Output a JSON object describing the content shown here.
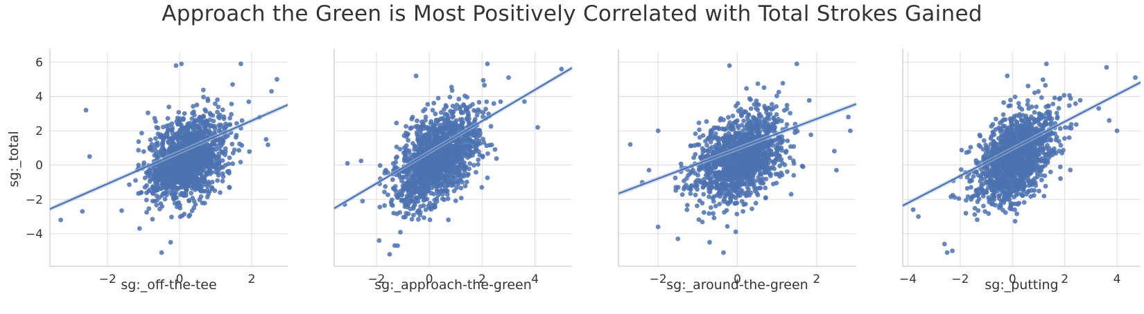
{
  "chart_data": {
    "type": "scatter",
    "title": "Approach the Green is Most Positively Correlated with Total Strokes Gained",
    "ylabel": "sg:_total",
    "ylim": [
      -5.9,
      6.6
    ],
    "yticks": [
      -4,
      -2,
      0,
      2,
      4,
      6
    ],
    "grid": true,
    "colors": {
      "points": "#4c72b0",
      "line": "#4c72b0",
      "ci_band": "#a9bfe0",
      "grid": "#dddddd",
      "axis": "#cccccc"
    },
    "panels": [
      {
        "xlabel": "sg:_off-the-tee",
        "xlim": [
          -3.6,
          3.0
        ],
        "xticks": [
          -2,
          0,
          2
        ],
        "x_mean": 0.2,
        "x_sd": 0.55,
        "regression": {
          "slope": 0.92,
          "intercept": 0.75
        },
        "outliers": [
          [
            -3.3,
            -3.2
          ],
          [
            -2.6,
            3.2
          ],
          [
            -2.5,
            0.5
          ],
          [
            -2.7,
            -2.7
          ],
          [
            2.7,
            5.0
          ],
          [
            2.55,
            4.3
          ],
          [
            2.4,
            1.5
          ],
          [
            0.05,
            5.9
          ],
          [
            1.7,
            5.9
          ],
          [
            -0.25,
            -4.5
          ],
          [
            -0.5,
            -5.1
          ],
          [
            -0.1,
            5.8
          ]
        ]
      },
      {
        "xlabel": "sg:_approach-the-green",
        "xlim": [
          -3.6,
          5.4
        ],
        "xticks": [
          -2,
          0,
          2,
          4
        ],
        "x_mean": 0.3,
        "x_sd": 0.8,
        "regression": {
          "slope": 0.91,
          "intercept": 0.75
        },
        "outliers": [
          [
            -3.1,
            0.1
          ],
          [
            5.0,
            5.6
          ],
          [
            4.1,
            2.2
          ],
          [
            3.6,
            3.7
          ],
          [
            2.2,
            5.9
          ],
          [
            -0.5,
            5.2
          ],
          [
            -1.5,
            -5.2
          ],
          [
            -1.2,
            -4.7
          ],
          [
            -1.9,
            -4.4
          ],
          [
            -3.2,
            -2.3
          ],
          [
            3.0,
            5.1
          ]
        ]
      },
      {
        "xlabel": "sg:_around-the-green",
        "xlim": [
          -3.0,
          3.0
        ],
        "xticks": [
          -2,
          0,
          2
        ],
        "x_mean": 0.05,
        "x_sd": 0.55,
        "regression": {
          "slope": 0.87,
          "intercept": 0.95
        },
        "outliers": [
          [
            -2.7,
            1.2
          ],
          [
            -2.4,
            -1.0
          ],
          [
            -2.0,
            2.0
          ],
          [
            -2.0,
            -3.6
          ],
          [
            2.8,
            2.8
          ],
          [
            2.85,
            2.0
          ],
          [
            2.5,
            -0.3
          ],
          [
            1.5,
            5.9
          ],
          [
            -0.35,
            -5.1
          ],
          [
            -0.7,
            -4.5
          ],
          [
            -0.2,
            5.8
          ],
          [
            -1.5,
            -4.3
          ]
        ]
      },
      {
        "xlabel": "sg:_putting",
        "xlim": [
          -4.2,
          4.9
        ],
        "xticks": [
          -4,
          0,
          2,
          4
        ],
        "xticks_all": [
          -4,
          -2,
          0,
          2,
          4
        ],
        "x_mean": 0.1,
        "x_sd": 0.75,
        "regression": {
          "slope": 0.79,
          "intercept": 0.95
        },
        "outliers": [
          [
            -3.8,
            -2.6
          ],
          [
            -3.6,
            -3.0
          ],
          [
            4.7,
            5.1
          ],
          [
            3.6,
            5.7
          ],
          [
            4.0,
            2.0
          ],
          [
            3.7,
            2.6
          ],
          [
            -2.5,
            -5.1
          ],
          [
            -2.6,
            -4.6
          ],
          [
            -2.3,
            -5.0
          ],
          [
            -0.2,
            5.2
          ],
          [
            1.3,
            5.9
          ],
          [
            3.3,
            3.3
          ]
        ]
      }
    ]
  }
}
